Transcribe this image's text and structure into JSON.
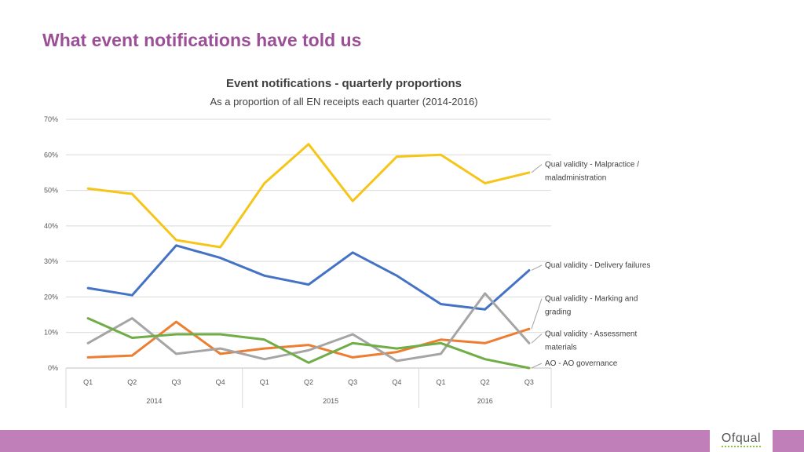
{
  "page": {
    "title": "What event notifications have told us",
    "logo_text": "Ofqual",
    "colors": {
      "title": "#9b4f96",
      "footer": "#c17fba"
    }
  },
  "chart_data": {
    "type": "line",
    "title": "Event notifications - quarterly proportions",
    "subtitle": "As a proportion of all EN receipts each quarter (2014-2016)",
    "xlabel": "",
    "ylabel": "",
    "ylim": [
      0,
      70
    ],
    "yticks": [
      "0%",
      "10%",
      "20%",
      "30%",
      "40%",
      "50%",
      "60%",
      "70%"
    ],
    "categories": [
      "Q1",
      "Q2",
      "Q3",
      "Q4",
      "Q1",
      "Q2",
      "Q3",
      "Q4",
      "Q1",
      "Q2",
      "Q3"
    ],
    "years": [
      {
        "label": "2014",
        "span": 4
      },
      {
        "label": "2015",
        "span": 4
      },
      {
        "label": "2016",
        "span": 3
      }
    ],
    "grid": true,
    "series": [
      {
        "name": "Qual validity - Malpractice / maladministration",
        "label_lines": [
          "Qual validity - Malpractice /",
          "maladministration"
        ],
        "color": "#f5c518",
        "values": [
          50.5,
          49,
          36,
          34,
          52,
          63,
          47,
          59.5,
          60,
          52,
          55
        ]
      },
      {
        "name": "Qual validity - Delivery failures",
        "label_lines": [
          "Qual validity - Delivery failures"
        ],
        "color": "#4472c4",
        "values": [
          22.5,
          20.5,
          34.5,
          31,
          26,
          23.5,
          32.5,
          26,
          18,
          16.5,
          27.5
        ]
      },
      {
        "name": "Qual validity - Marking and grading",
        "label_lines": [
          "Qual validity - Marking and",
          "grading"
        ],
        "color": "#ed7d31",
        "values": [
          3,
          3.5,
          13,
          4,
          5.5,
          6.5,
          3,
          4.5,
          8,
          7,
          11
        ]
      },
      {
        "name": "Qual validity - Assessment materials",
        "label_lines": [
          "Qual validity - Assessment",
          "materials"
        ],
        "color": "#a5a5a5",
        "values": [
          7,
          14,
          4,
          5.5,
          2.5,
          5,
          9.5,
          2,
          4,
          21,
          7
        ]
      },
      {
        "name": "AO - AO governance",
        "label_lines": [
          "AO - AO governance"
        ],
        "color": "#70ad47",
        "values": [
          14,
          8.5,
          9.5,
          9.5,
          8,
          1.5,
          7,
          5.5,
          7,
          2.5,
          0
        ]
      }
    ]
  }
}
